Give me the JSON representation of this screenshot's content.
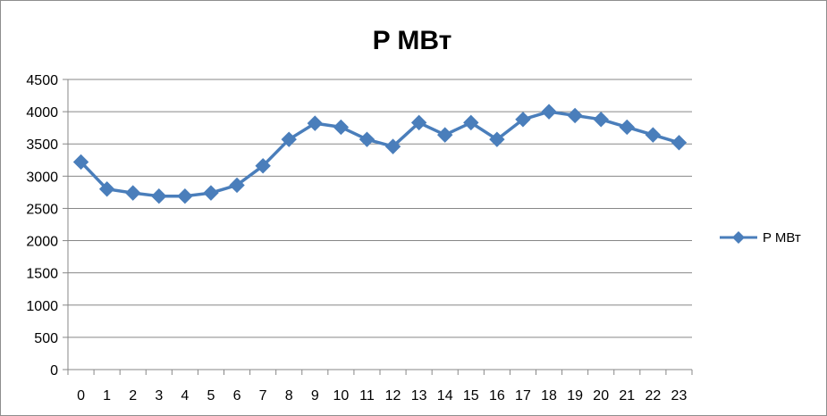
{
  "chart_data": {
    "type": "line",
    "title": "P МВт",
    "xlabel": "",
    "ylabel": "",
    "categories": [
      "0",
      "1",
      "2",
      "3",
      "4",
      "5",
      "6",
      "7",
      "8",
      "9",
      "10",
      "11",
      "12",
      "13",
      "14",
      "15",
      "16",
      "17",
      "18",
      "19",
      "20",
      "21",
      "22",
      "23"
    ],
    "series": [
      {
        "name": "P МВт",
        "values": [
          3220,
          2800,
          2740,
          2690,
          2690,
          2740,
          2860,
          3160,
          3570,
          3820,
          3760,
          3570,
          3460,
          3830,
          3640,
          3830,
          3570,
          3880,
          4000,
          3940,
          3880,
          3760,
          3640,
          3520
        ]
      }
    ],
    "ylim": [
      0,
      4500
    ],
    "y_ticks": [
      0,
      500,
      1000,
      1500,
      2000,
      2500,
      3000,
      3500,
      4000,
      4500
    ],
    "grid": "horizontal major",
    "legend_position": "right",
    "colors": {
      "series": "#4a7ebb",
      "grid": "#878787",
      "axis": "#878787"
    },
    "marker": "diamond"
  }
}
